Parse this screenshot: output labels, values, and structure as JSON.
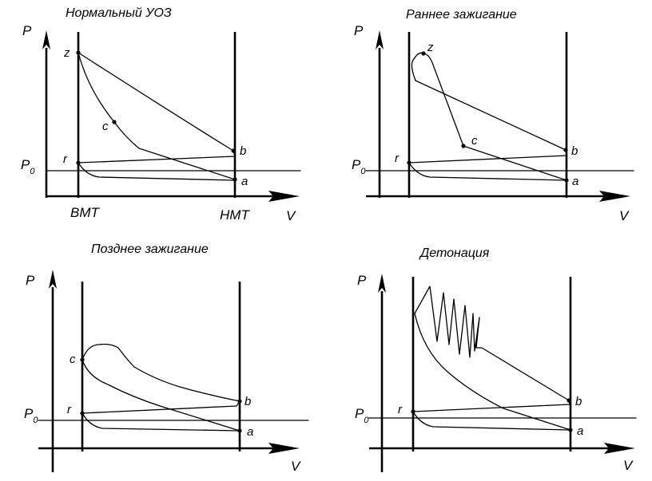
{
  "panels": [
    {
      "title": "Нормальный УОЗ",
      "axis_p": "P",
      "axis_v": "V",
      "p0_main": "P",
      "p0_sub": "0",
      "points": {
        "z": "z",
        "c": "c",
        "r": "r",
        "b": "b",
        "a": "a"
      },
      "bottom_labels": {
        "left": "ВМТ",
        "right": "НМТ"
      }
    },
    {
      "title": "Раннее зажигание",
      "axis_p": "P",
      "axis_v": "V",
      "p0_main": "P",
      "p0_sub": "0",
      "points": {
        "z": "z",
        "c": "c",
        "r": "r",
        "b": "b",
        "a": "a"
      }
    },
    {
      "title": "Позднее зажигание",
      "axis_p": "P",
      "axis_v": "V",
      "p0_main": "P",
      "p0_sub": "0",
      "points": {
        "c": "c",
        "r": "r",
        "b": "b",
        "a": "a"
      }
    },
    {
      "title": "Детонация",
      "axis_p": "P",
      "axis_v": "V",
      "p0_main": "P",
      "p0_sub": "0",
      "points": {
        "r": "r",
        "b": "b",
        "a": "a"
      }
    }
  ]
}
